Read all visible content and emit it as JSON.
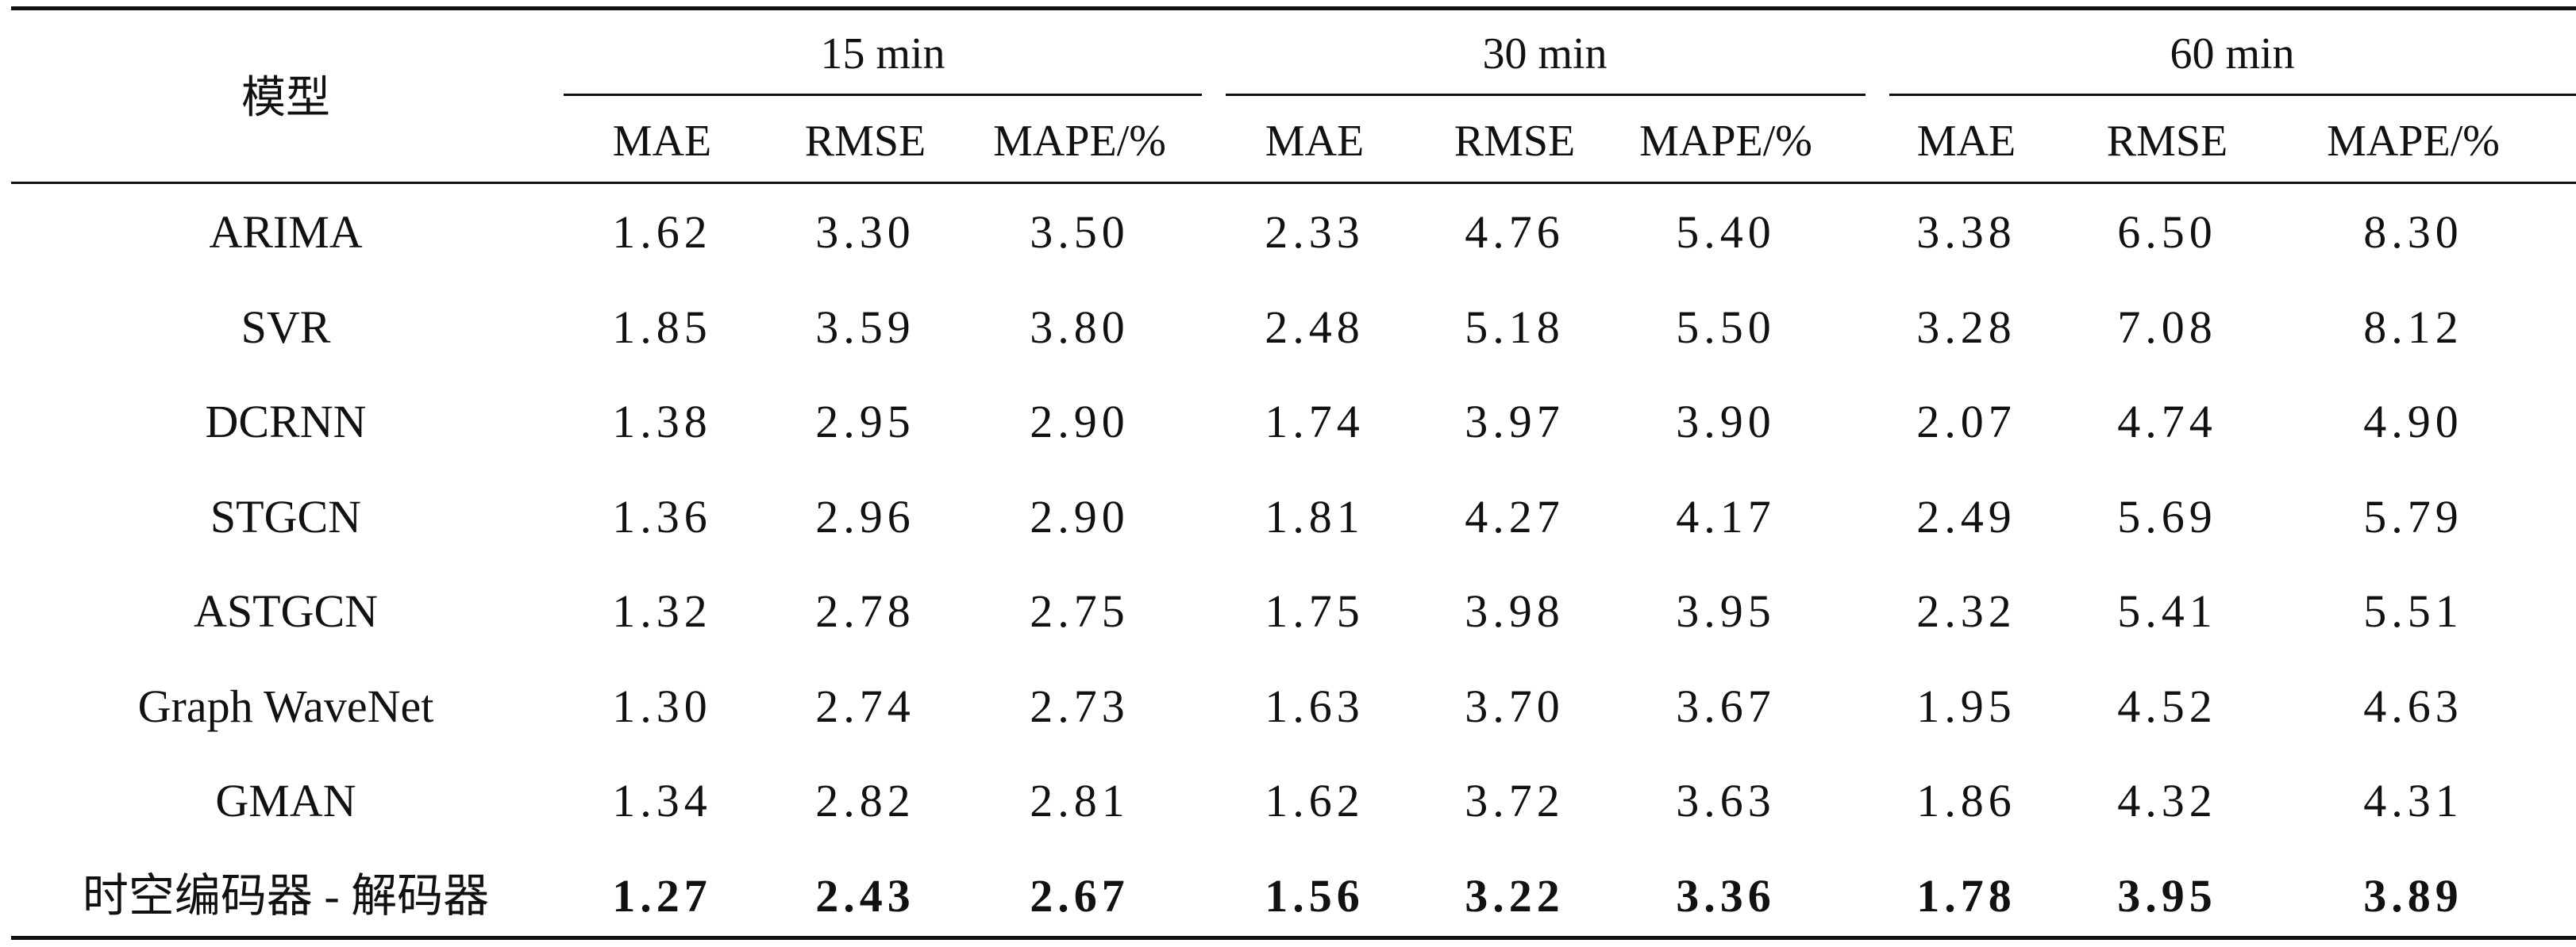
{
  "table": {
    "model_header": "模型",
    "groups": [
      "15 min",
      "30 min",
      "60 min"
    ],
    "metrics": [
      "MAE",
      "RMSE",
      "MAPE/%"
    ],
    "rows": [
      {
        "model": "ARIMA",
        "values": [
          "1.62",
          "3.30",
          "3.50",
          "2.33",
          "4.76",
          "5.40",
          "3.38",
          "6.50",
          "8.30"
        ]
      },
      {
        "model": "SVR",
        "values": [
          "1.85",
          "3.59",
          "3.80",
          "2.48",
          "5.18",
          "5.50",
          "3.28",
          "7.08",
          "8.12"
        ]
      },
      {
        "model": "DCRNN",
        "values": [
          "1.38",
          "2.95",
          "2.90",
          "1.74",
          "3.97",
          "3.90",
          "2.07",
          "4.74",
          "4.90"
        ]
      },
      {
        "model": "STGCN",
        "values": [
          "1.36",
          "2.96",
          "2.90",
          "1.81",
          "4.27",
          "4.17",
          "2.49",
          "5.69",
          "5.79"
        ]
      },
      {
        "model": "ASTGCN",
        "values": [
          "1.32",
          "2.78",
          "2.75",
          "1.75",
          "3.98",
          "3.95",
          "2.32",
          "5.41",
          "5.51"
        ]
      },
      {
        "model": "Graph WaveNet",
        "values": [
          "1.30",
          "2.74",
          "2.73",
          "1.63",
          "3.70",
          "3.67",
          "1.95",
          "4.52",
          "4.63"
        ]
      },
      {
        "model": "GMAN",
        "values": [
          "1.34",
          "2.82",
          "2.81",
          "1.62",
          "3.72",
          "3.63",
          "1.86",
          "4.32",
          "4.31"
        ]
      },
      {
        "model": "时空编码器 - 解码器",
        "values": [
          "1.27",
          "2.43",
          "2.67",
          "1.56",
          "3.22",
          "3.36",
          "1.78",
          "3.95",
          "3.89"
        ],
        "bold": true
      }
    ]
  }
}
